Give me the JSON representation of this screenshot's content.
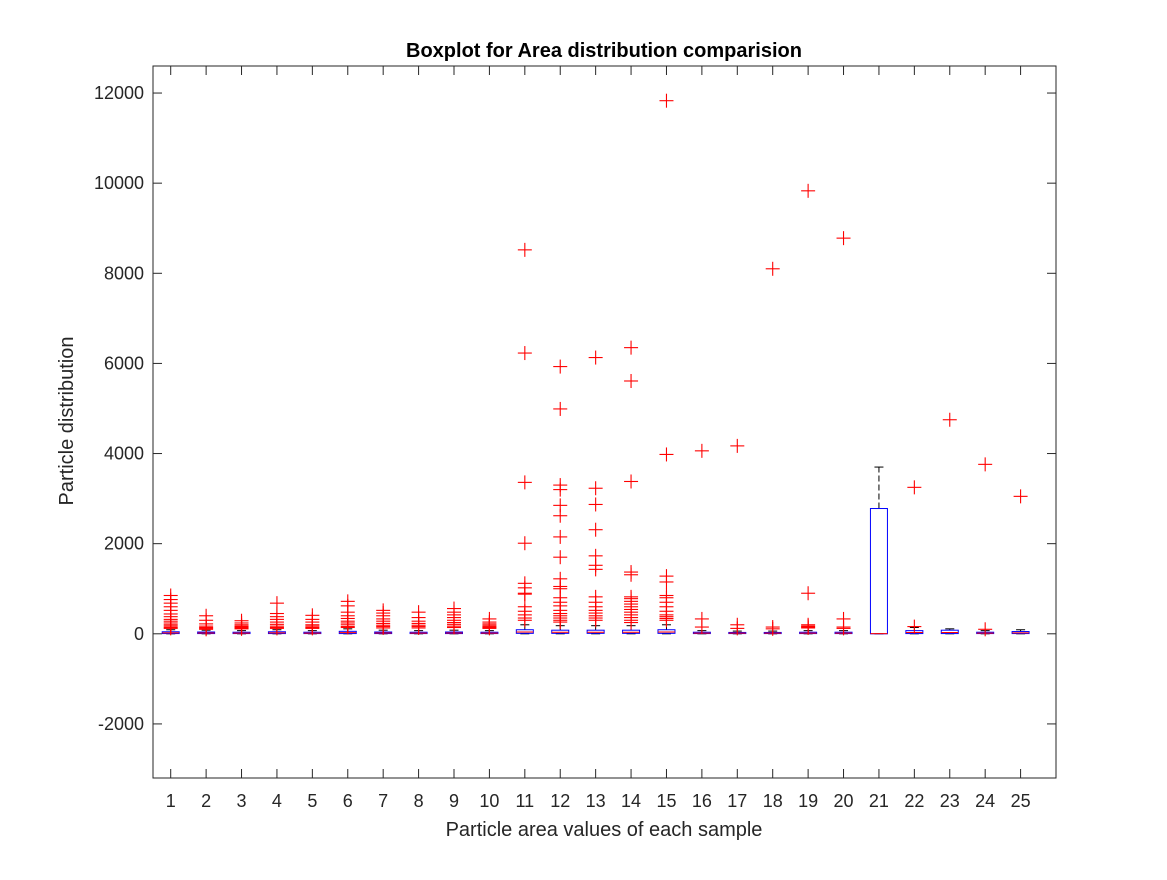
{
  "chart_data": {
    "type": "boxplot",
    "title": "Boxplot for Area distribution comparision",
    "xlabel": "Particle area values of each sample",
    "ylabel": "Particle distribution",
    "ylim": [
      -3200,
      12600
    ],
    "yticks": [
      -2000,
      0,
      2000,
      4000,
      6000,
      8000,
      10000,
      12000
    ],
    "ytick_labels": [
      "-2000",
      "0",
      "2000",
      "4000",
      "6000",
      "8000",
      "10000",
      "12000"
    ],
    "categories": [
      "1",
      "2",
      "3",
      "4",
      "5",
      "6",
      "7",
      "8",
      "9",
      "10",
      "11",
      "12",
      "13",
      "14",
      "15",
      "16",
      "17",
      "18",
      "19",
      "20",
      "21",
      "22",
      "23",
      "24",
      "25"
    ],
    "grid": false,
    "colors": {
      "box": "#0000ff",
      "median": "#ff0000",
      "outlier": "#ff0000",
      "whisker": "#000000",
      "axis": "#262626"
    },
    "boxes": [
      {
        "category": "1",
        "q1": 5,
        "median": 20,
        "q3": 45,
        "whisker_low": 0,
        "whisker_high": 90
      },
      {
        "category": "2",
        "q1": 5,
        "median": 18,
        "q3": 40,
        "whisker_low": 0,
        "whisker_high": 80
      },
      {
        "category": "3",
        "q1": 5,
        "median": 15,
        "q3": 35,
        "whisker_low": 0,
        "whisker_high": 70
      },
      {
        "category": "4",
        "q1": 5,
        "median": 20,
        "q3": 45,
        "whisker_low": 0,
        "whisker_high": 90
      },
      {
        "category": "5",
        "q1": 5,
        "median": 15,
        "q3": 35,
        "whisker_low": 0,
        "whisker_high": 70
      },
      {
        "category": "6",
        "q1": 5,
        "median": 25,
        "q3": 55,
        "whisker_low": 0,
        "whisker_high": 110
      },
      {
        "category": "7",
        "q1": 5,
        "median": 18,
        "q3": 40,
        "whisker_low": 0,
        "whisker_high": 80
      },
      {
        "category": "8",
        "q1": 5,
        "median": 15,
        "q3": 35,
        "whisker_low": 0,
        "whisker_high": 70
      },
      {
        "category": "9",
        "q1": 5,
        "median": 18,
        "q3": 40,
        "whisker_low": 0,
        "whisker_high": 80
      },
      {
        "category": "10",
        "q1": 5,
        "median": 15,
        "q3": 35,
        "whisker_low": 0,
        "whisker_high": 70
      },
      {
        "category": "11",
        "q1": 10,
        "median": 40,
        "q3": 90,
        "whisker_low": 0,
        "whisker_high": 200
      },
      {
        "category": "12",
        "q1": 10,
        "median": 35,
        "q3": 80,
        "whisker_low": 0,
        "whisker_high": 180
      },
      {
        "category": "13",
        "q1": 10,
        "median": 35,
        "q3": 80,
        "whisker_low": 0,
        "whisker_high": 180
      },
      {
        "category": "14",
        "q1": 10,
        "median": 35,
        "q3": 80,
        "whisker_low": 0,
        "whisker_high": 180
      },
      {
        "category": "15",
        "q1": 10,
        "median": 40,
        "q3": 90,
        "whisker_low": 0,
        "whisker_high": 200
      },
      {
        "category": "16",
        "q1": 5,
        "median": 15,
        "q3": 35,
        "whisker_low": 0,
        "whisker_high": 70
      },
      {
        "category": "17",
        "q1": 5,
        "median": 15,
        "q3": 30,
        "whisker_low": 0,
        "whisker_high": 60
      },
      {
        "category": "18",
        "q1": 5,
        "median": 15,
        "q3": 30,
        "whisker_low": 0,
        "whisker_high": 60
      },
      {
        "category": "19",
        "q1": 5,
        "median": 15,
        "q3": 35,
        "whisker_low": 0,
        "whisker_high": 70
      },
      {
        "category": "20",
        "q1": 5,
        "median": 15,
        "q3": 35,
        "whisker_low": 0,
        "whisker_high": 70
      },
      {
        "category": "21",
        "q1": 0,
        "median": 5,
        "q3": 2780,
        "whisker_low": 0,
        "whisker_high": 3700
      },
      {
        "category": "22",
        "q1": 5,
        "median": 30,
        "q3": 70,
        "whisker_low": 0,
        "whisker_high": 140
      },
      {
        "category": "23",
        "q1": 5,
        "median": 30,
        "q3": 80,
        "whisker_low": 0,
        "whisker_high": 110
      },
      {
        "category": "24",
        "q1": 5,
        "median": 15,
        "q3": 35,
        "whisker_low": 0,
        "whisker_high": 70
      },
      {
        "category": "25",
        "q1": 5,
        "median": 20,
        "q3": 50,
        "whisker_low": 0,
        "whisker_high": 90
      }
    ],
    "outliers": [
      {
        "category": "1",
        "values": [
          850,
          760,
          680,
          600,
          520,
          440,
          380,
          320,
          280,
          240,
          200,
          170,
          140,
          120
        ]
      },
      {
        "category": "2",
        "values": [
          400,
          300,
          220,
          170,
          140,
          120,
          100
        ]
      },
      {
        "category": "3",
        "values": [
          290,
          240,
          200,
          170,
          150,
          130,
          110
        ]
      },
      {
        "category": "4",
        "values": [
          680,
          450,
          380,
          320,
          260,
          210,
          170,
          140,
          120
        ]
      },
      {
        "category": "5",
        "values": [
          410,
          320,
          260,
          200,
          170,
          140,
          120
        ]
      },
      {
        "category": "6",
        "values": [
          720,
          620,
          480,
          400,
          340,
          280,
          240,
          200,
          160,
          140
        ]
      },
      {
        "category": "7",
        "values": [
          520,
          460,
          400,
          330,
          280,
          230,
          190,
          160,
          130
        ]
      },
      {
        "category": "8",
        "values": [
          480,
          360,
          280,
          230,
          190,
          160,
          130
        ]
      },
      {
        "category": "9",
        "values": [
          560,
          480,
          420,
          360,
          300,
          250,
          210,
          170,
          140
        ]
      },
      {
        "category": "10",
        "values": [
          330,
          260,
          220,
          190,
          160,
          140,
          120
        ]
      },
      {
        "category": "11",
        "values": [
          8520,
          6230,
          3360,
          2010,
          1120,
          1020,
          900,
          880,
          600,
          500,
          420,
          350,
          300
        ]
      },
      {
        "category": "12",
        "values": [
          5930,
          4990,
          3300,
          3200,
          2850,
          2620,
          2150,
          1700,
          1220,
          1050,
          1000,
          800,
          700,
          620,
          520,
          450,
          400,
          350,
          300,
          260
        ]
      },
      {
        "category": "13",
        "values": [
          6130,
          3230,
          2870,
          2310,
          1730,
          1520,
          1430,
          820,
          700,
          600,
          520,
          460,
          400,
          350,
          300
        ]
      },
      {
        "category": "14",
        "values": [
          6350,
          5610,
          3380,
          1370,
          1310,
          820,
          780,
          720,
          660,
          600,
          540,
          480,
          420,
          360,
          300,
          250
        ]
      },
      {
        "category": "15",
        "values": [
          11830,
          3980,
          1280,
          1150,
          850,
          800,
          700,
          600,
          500,
          420,
          380,
          340,
          300
        ]
      },
      {
        "category": "16",
        "values": [
          4060,
          330,
          150
        ]
      },
      {
        "category": "17",
        "values": [
          4170,
          200,
          120
        ]
      },
      {
        "category": "18",
        "values": [
          8100,
          150,
          110
        ]
      },
      {
        "category": "19",
        "values": [
          9830,
          900,
          200,
          170,
          150,
          130
        ]
      },
      {
        "category": "20",
        "values": [
          8780,
          330,
          150,
          120
        ]
      },
      {
        "category": "22",
        "values": [
          3250,
          160
        ]
      },
      {
        "category": "23",
        "values": [
          4750
        ]
      },
      {
        "category": "24",
        "values": [
          3760,
          100
        ]
      },
      {
        "category": "25",
        "values": [
          3050
        ]
      }
    ]
  }
}
